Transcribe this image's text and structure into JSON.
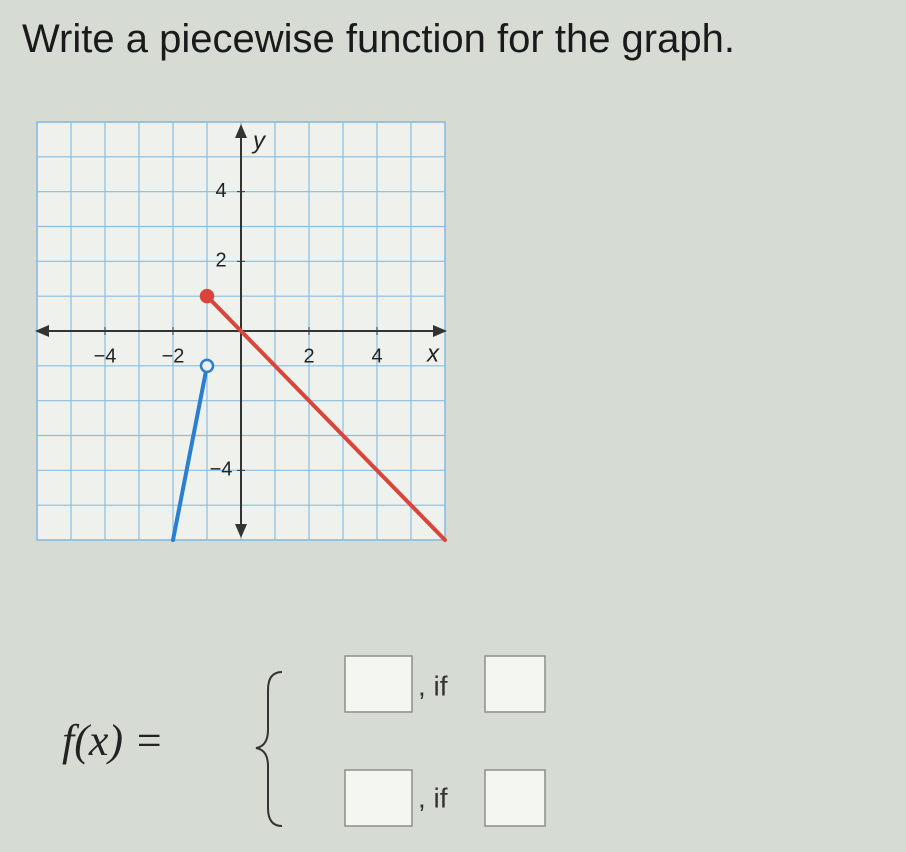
{
  "header": {
    "title": "Write a piecewise function for the graph."
  },
  "graph": {
    "xlim": [
      -6,
      6
    ],
    "ylim": [
      -6,
      6
    ],
    "grid": true,
    "x_label": "x",
    "y_label": "y",
    "xticks": [
      {
        "value": -4,
        "label": "−4"
      },
      {
        "value": -2,
        "label": "−2"
      },
      2,
      4
    ],
    "yticks": [
      4,
      2,
      {
        "value": -4,
        "label": "−4"
      }
    ],
    "segments": [
      {
        "color": "#d9453a",
        "points": [
          [
            -1,
            1
          ],
          [
            6,
            -6
          ]
        ],
        "start": "closed"
      },
      {
        "color": "#2a7fd0",
        "points": [
          [
            -1,
            -1
          ],
          [
            -2,
            -6
          ]
        ],
        "start": "open"
      }
    ]
  },
  "formula": {
    "lhs": "f(x) =",
    "rows": [
      {
        "if": ", if"
      },
      {
        "if": ", if"
      }
    ]
  }
}
